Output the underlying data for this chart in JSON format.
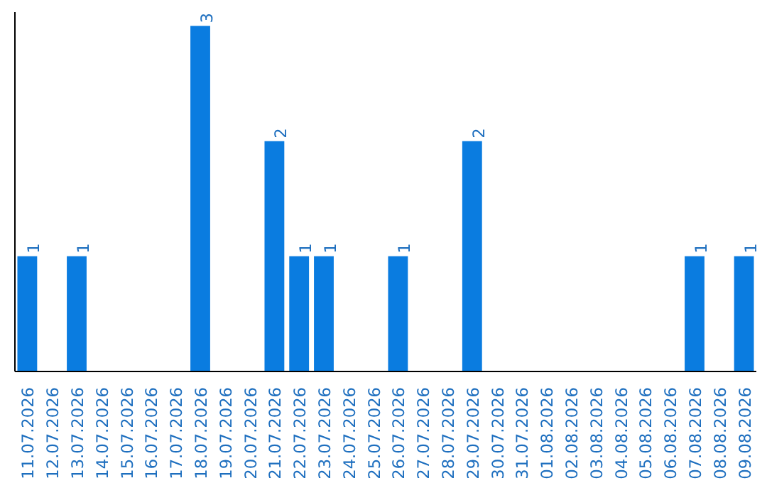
{
  "chart_data": {
    "type": "bar",
    "categories": [
      "11.07.2026",
      "12.07.2026",
      "13.07.2026",
      "14.07.2026",
      "15.07.2026",
      "16.07.2026",
      "17.07.2026",
      "18.07.2026",
      "19.07.2026",
      "20.07.2026",
      "21.07.2026",
      "22.07.2026",
      "23.07.2026",
      "24.07.2026",
      "25.07.2026",
      "26.07.2026",
      "27.07.2026",
      "28.07.2026",
      "29.07.2026",
      "30.07.2026",
      "31.07.2026",
      "01.08.2026",
      "02.08.2026",
      "03.08.2026",
      "04.08.2026",
      "05.08.2026",
      "06.08.2026",
      "07.08.2026",
      "08.08.2026",
      "09.08.2026"
    ],
    "values": [
      1,
      0,
      1,
      0,
      0,
      0,
      0,
      3,
      0,
      0,
      2,
      1,
      1,
      0,
      0,
      1,
      0,
      0,
      2,
      0,
      0,
      0,
      0,
      0,
      0,
      0,
      0,
      1,
      0,
      1
    ],
    "value_labels": [
      "1",
      null,
      "1",
      null,
      null,
      null,
      null,
      "3",
      null,
      null,
      "2",
      "1",
      "1",
      null,
      null,
      "1",
      null,
      null,
      "2",
      null,
      null,
      null,
      null,
      null,
      null,
      null,
      null,
      "1",
      null,
      "1"
    ],
    "color": "#0a7ce0",
    "grid": false,
    "tick_labels": "x"
  }
}
